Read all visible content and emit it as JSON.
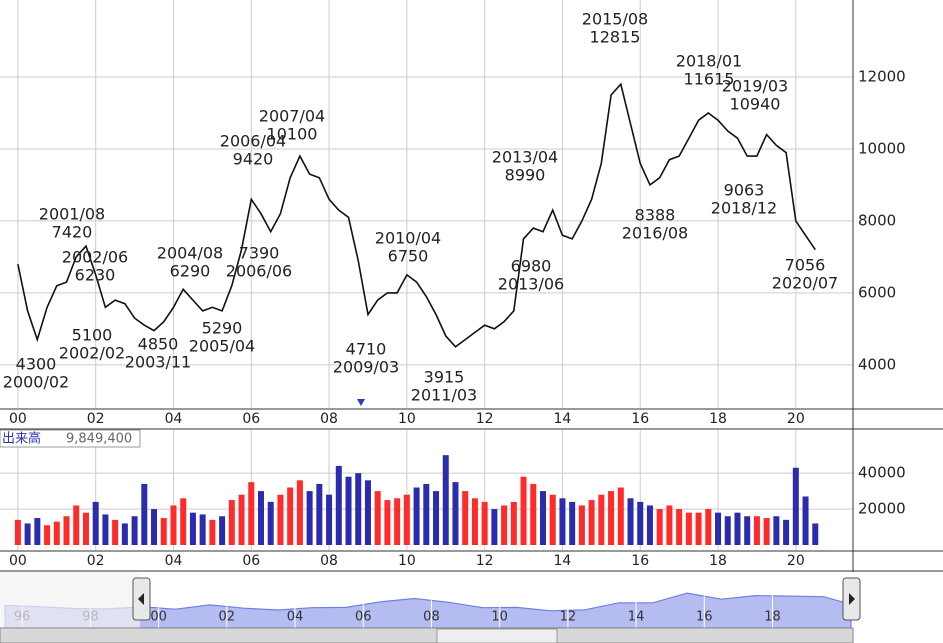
{
  "chart_data": [
    {
      "type": "line",
      "color": "#111111",
      "x": [
        2000,
        2000.25,
        2000.5,
        2000.75,
        2001,
        2001.25,
        2001.5,
        2001.75,
        2002,
        2002.25,
        2002.5,
        2002.75,
        2003,
        2003.25,
        2003.5,
        2003.75,
        2004,
        2004.25,
        2004.5,
        2004.75,
        2005,
        2005.25,
        2005.5,
        2005.75,
        2006,
        2006.25,
        2006.5,
        2006.75,
        2007,
        2007.25,
        2007.5,
        2007.75,
        2008,
        2008.25,
        2008.5,
        2008.75,
        2009,
        2009.25,
        2009.5,
        2009.75,
        2010,
        2010.25,
        2010.5,
        2010.75,
        2011,
        2011.25,
        2011.5,
        2011.75,
        2012,
        2012.25,
        2012.5,
        2012.75,
        2013,
        2013.25,
        2013.5,
        2013.75,
        2014,
        2014.25,
        2014.5,
        2014.75,
        2015,
        2015.25,
        2015.5,
        2015.75,
        2016,
        2016.25,
        2016.5,
        2016.75,
        2017,
        2017.25,
        2017.5,
        2017.75,
        2018,
        2018.25,
        2018.5,
        2018.75,
        2019,
        2019.25,
        2019.5,
        2019.75,
        2020,
        2020.25,
        2020.5
      ],
      "values": [
        6800,
        5500,
        4700,
        5600,
        6200,
        6300,
        7000,
        7300,
        6500,
        5600,
        5800,
        5700,
        5300,
        5100,
        4950,
        5200,
        5600,
        6100,
        5800,
        5500,
        5600,
        5500,
        6200,
        7200,
        8600,
        8200,
        7700,
        8200,
        9200,
        9800,
        9300,
        9200,
        8600,
        8300,
        8100,
        6900,
        5400,
        5800,
        6000,
        6000,
        6500,
        6300,
        5900,
        5400,
        4800,
        4500,
        4700,
        4900,
        5100,
        5000,
        5200,
        5500,
        7500,
        7800,
        7700,
        8300,
        7600,
        7500,
        8000,
        8600,
        9600,
        11500,
        11800,
        10700,
        9600,
        9000,
        9200,
        9700,
        9800,
        10300,
        10800,
        11000,
        10800,
        10500,
        10300,
        9800,
        9800,
        10400,
        10100,
        9900,
        8000,
        7600,
        7200
      ],
      "xlim": [
        1999.54,
        2021.47
      ],
      "ylim": [
        2800,
        14140
      ],
      "xticks": [
        {
          "value": 2000,
          "label": "00"
        },
        {
          "value": 2002,
          "label": "02"
        },
        {
          "value": 2004,
          "label": "04"
        },
        {
          "value": 2006,
          "label": "06"
        },
        {
          "value": 2008,
          "label": "08"
        },
        {
          "value": 2010,
          "label": "10"
        },
        {
          "value": 2012,
          "label": "12"
        },
        {
          "value": 2014,
          "label": "14"
        },
        {
          "value": 2016,
          "label": "16"
        },
        {
          "value": 2018,
          "label": "18"
        },
        {
          "value": 2020,
          "label": "20"
        }
      ],
      "yticks": [
        4000,
        6000,
        8000,
        10000,
        12000
      ],
      "grid": true,
      "annotations": [
        {
          "date": "2000/02",
          "value": 4300
        },
        {
          "date": "2001/08",
          "value": 7420
        },
        {
          "date": "2002/02",
          "value": 5100
        },
        {
          "date": "2002/06",
          "value": 6230
        },
        {
          "date": "2003/11",
          "value": 4850
        },
        {
          "date": "2004/08",
          "value": 6290
        },
        {
          "date": "2005/04",
          "value": 5290
        },
        {
          "date": "2006/04",
          "value": 9420
        },
        {
          "date": "2006/06",
          "value": 7390
        },
        {
          "date": "2007/04",
          "value": 10100
        },
        {
          "date": "2009/03",
          "value": 4710
        },
        {
          "date": "2010/04",
          "value": 6750
        },
        {
          "date": "2011/03",
          "value": 3915
        },
        {
          "date": "2013/04",
          "value": 8990
        },
        {
          "date": "2013/06",
          "value": 6980
        },
        {
          "date": "2015/08",
          "value": 12815
        },
        {
          "date": "2016/08",
          "value": 8388
        },
        {
          "date": "2018/01",
          "value": 11615
        },
        {
          "date": "2018/12",
          "value": 9063
        },
        {
          "date": "2019/03",
          "value": 10940
        },
        {
          "date": "2020/07",
          "value": 7056
        }
      ]
    },
    {
      "type": "bar",
      "label": "出来高",
      "last_value": "9,849,400",
      "up_color": "#ff2b2b",
      "down_color": "#2b2bb0",
      "x": [
        2000,
        2000.25,
        2000.5,
        2000.75,
        2001,
        2001.25,
        2001.5,
        2001.75,
        2002,
        2002.25,
        2002.5,
        2002.75,
        2003,
        2003.25,
        2003.5,
        2003.75,
        2004,
        2004.25,
        2004.5,
        2004.75,
        2005,
        2005.25,
        2005.5,
        2005.75,
        2006,
        2006.25,
        2006.5,
        2006.75,
        2007,
        2007.25,
        2007.5,
        2007.75,
        2008,
        2008.25,
        2008.5,
        2008.75,
        2009,
        2009.25,
        2009.5,
        2009.75,
        2010,
        2010.25,
        2010.5,
        2010.75,
        2011,
        2011.25,
        2011.5,
        2011.75,
        2012,
        2012.25,
        2012.5,
        2012.75,
        2013,
        2013.25,
        2013.5,
        2013.75,
        2014,
        2014.25,
        2014.5,
        2014.75,
        2015,
        2015.25,
        2015.5,
        2015.75,
        2016,
        2016.25,
        2016.5,
        2016.75,
        2017,
        2017.25,
        2017.5,
        2017.75,
        2018,
        2018.25,
        2018.5,
        2018.75,
        2019,
        2019.25,
        2019.5,
        2019.75,
        2020,
        2020.25,
        2020.5
      ],
      "values": [
        14000,
        12000,
        15000,
        11000,
        13000,
        16000,
        22000,
        18000,
        24000,
        17000,
        14000,
        12000,
        16000,
        34000,
        20000,
        15000,
        22000,
        26000,
        18000,
        17000,
        14000,
        16000,
        25000,
        28000,
        35000,
        30000,
        24000,
        28000,
        32000,
        36000,
        30000,
        34000,
        28000,
        44000,
        38000,
        40000,
        36000,
        30000,
        25000,
        26000,
        28000,
        32000,
        34000,
        30000,
        50000,
        35000,
        30000,
        26000,
        24000,
        20000,
        22000,
        24000,
        38000,
        34000,
        30000,
        28000,
        26000,
        24000,
        22000,
        25000,
        28000,
        30000,
        32000,
        26000,
        24000,
        22000,
        20000,
        22000,
        20000,
        18000,
        18000,
        20000,
        18000,
        16000,
        18000,
        16000,
        16000,
        15000,
        16000,
        14000,
        43000,
        27000,
        12000
      ],
      "xlim": [
        1999.54,
        2021.47
      ],
      "ylim": [
        0,
        64000
      ],
      "xticks": [
        {
          "value": 2000,
          "label": "00"
        },
        {
          "value": 2002,
          "label": "02"
        },
        {
          "value": 2004,
          "label": "04"
        },
        {
          "value": 2006,
          "label": "06"
        },
        {
          "value": 2008,
          "label": "08"
        },
        {
          "value": 2010,
          "label": "10"
        },
        {
          "value": 2012,
          "label": "12"
        },
        {
          "value": 2014,
          "label": "14"
        },
        {
          "value": 2016,
          "label": "16"
        },
        {
          "value": 2018,
          "label": "18"
        },
        {
          "value": 2020,
          "label": "20"
        }
      ],
      "yticks": [
        20000,
        40000
      ],
      "grid": true
    },
    {
      "type": "area",
      "color": "#7080e0",
      "x": [
        1995.5,
        1996.5,
        1997.5,
        1998.5,
        1999.5,
        2000.5,
        2001.5,
        2002.5,
        2003.5,
        2004.5,
        2005.5,
        2006.5,
        2007.5,
        2008.5,
        2009.5,
        2010.5,
        2011.5,
        2012.5,
        2013.5,
        2014.5,
        2015.5,
        2016.5,
        2017.5,
        2018.5,
        2019.5,
        2020.3
      ],
      "values": [
        6800,
        6300,
        5600,
        5400,
        6300,
        5300,
        7000,
        5700,
        5000,
        5900,
        6000,
        8200,
        9500,
        8000,
        5900,
        6000,
        4700,
        5100,
        7800,
        7800,
        11600,
        9200,
        10600,
        10400,
        10200,
        7200
      ],
      "xlim": [
        1995.35,
        2020.36
      ],
      "ylim": [
        -2000,
        19800
      ],
      "xticks": [
        {
          "value": 1996,
          "label": "96"
        },
        {
          "value": 1998,
          "label": "98"
        },
        {
          "value": 2000,
          "label": "00"
        },
        {
          "value": 2002,
          "label": "02"
        },
        {
          "value": 2004,
          "label": "04"
        },
        {
          "value": 2006,
          "label": "06"
        },
        {
          "value": 2008,
          "label": "08"
        },
        {
          "value": 2010,
          "label": "10"
        },
        {
          "value": 2012,
          "label": "12"
        },
        {
          "value": 2014,
          "label": "14"
        },
        {
          "value": 2016,
          "label": "16"
        },
        {
          "value": 2018,
          "label": "18"
        }
      ],
      "grid": true
    }
  ]
}
